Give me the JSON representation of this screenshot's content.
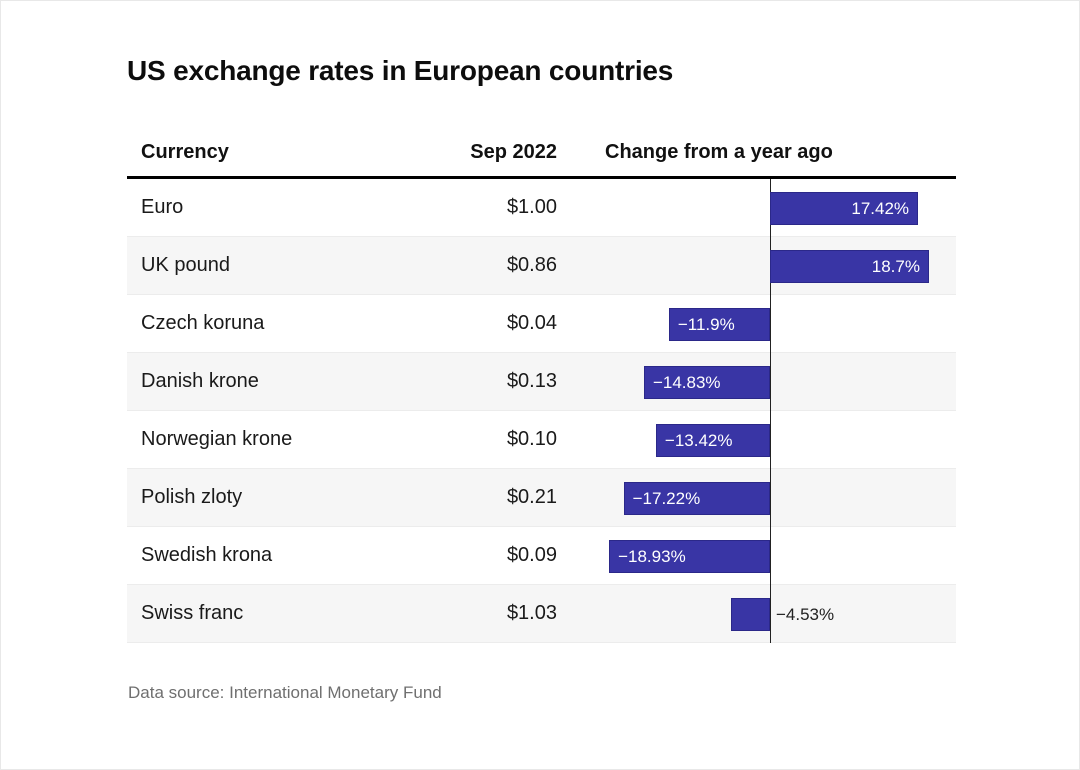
{
  "title": "US exchange rates in European countries",
  "columns": {
    "currency": "Currency",
    "value": "Sep 2022",
    "change": "Change from a year ago"
  },
  "rows": [
    {
      "currency": "Euro",
      "value": "$1.00",
      "change": 17.42,
      "label": "17.42%"
    },
    {
      "currency": "UK pound",
      "value": "$0.86",
      "change": 18.7,
      "label": "18.7%"
    },
    {
      "currency": "Czech koruna",
      "value": "$0.04",
      "change": -11.9,
      "label": "−11.9%"
    },
    {
      "currency": "Danish krone",
      "value": "$0.13",
      "change": -14.83,
      "label": "−14.83%"
    },
    {
      "currency": "Norwegian krone",
      "value": "$0.10",
      "change": -13.42,
      "label": "−13.42%"
    },
    {
      "currency": "Polish zloty",
      "value": "$0.21",
      "change": -17.22,
      "label": "−17.22%"
    },
    {
      "currency": "Swedish krona",
      "value": "$0.09",
      "change": -18.93,
      "label": "−18.93%"
    },
    {
      "currency": "Swiss franc",
      "value": "$1.03",
      "change": -4.53,
      "label": "−4.53%"
    }
  ],
  "footer": "Data source: International Monetary Fund",
  "colors": {
    "bar": "#3935a5",
    "bar_border": "#2b2889",
    "stripe": "#f6f6f6",
    "axis_line": "#222222",
    "header_rule": "#000000",
    "footer_text": "#6f6f6f"
  },
  "chart_data": {
    "type": "bar",
    "orientation": "horizontal",
    "title": "US exchange rates in European countries",
    "categories": [
      "Euro",
      "UK pound",
      "Czech koruna",
      "Danish krone",
      "Norwegian krone",
      "Polish zloty",
      "Swedish krona",
      "Swiss franc"
    ],
    "series": [
      {
        "name": "Sep 2022 (USD)",
        "values": [
          1.0,
          0.86,
          0.04,
          0.13,
          0.1,
          0.21,
          0.09,
          1.03
        ]
      },
      {
        "name": "Change from a year ago (%)",
        "values": [
          17.42,
          18.7,
          -11.9,
          -14.83,
          -13.42,
          -17.22,
          -18.93,
          -4.53
        ]
      }
    ],
    "xlim": [
      -25,
      22
    ],
    "grid": false,
    "legend_position": "none",
    "annotations": [
      "Data source: International Monetary Fund"
    ]
  }
}
